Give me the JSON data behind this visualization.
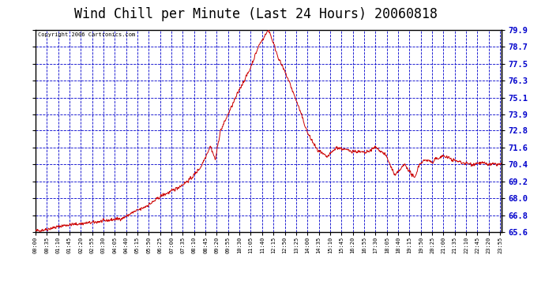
{
  "title": "Wind Chill per Minute (Last 24 Hours) 20060818",
  "copyright": "Copyright 2006 Cartronics.com",
  "plot_bg_color": "#ffffff",
  "line_color": "#cc0000",
  "outer_bg_color": "#ffffff",
  "ylim": [
    65.6,
    79.9
  ],
  "yticks": [
    65.6,
    66.8,
    68.0,
    69.2,
    70.4,
    71.6,
    72.8,
    73.9,
    75.1,
    76.3,
    77.5,
    78.7,
    79.9
  ],
  "xtick_labels": [
    "00:00",
    "00:35",
    "01:10",
    "01:45",
    "02:20",
    "02:55",
    "03:30",
    "04:05",
    "04:40",
    "05:15",
    "05:50",
    "06:25",
    "07:00",
    "07:35",
    "08:10",
    "08:45",
    "09:20",
    "09:55",
    "10:30",
    "11:05",
    "11:40",
    "12:15",
    "12:50",
    "13:25",
    "14:00",
    "14:35",
    "15:10",
    "15:45",
    "16:20",
    "16:55",
    "17:30",
    "18:05",
    "18:40",
    "19:15",
    "19:50",
    "20:25",
    "21:00",
    "21:35",
    "22:10",
    "22:45",
    "23:20",
    "23:55"
  ],
  "grid_color": "#0000cc",
  "grid_linestyle": "--",
  "grid_linewidth": 0.6,
  "title_fontsize": 12,
  "border_color": "#000000"
}
